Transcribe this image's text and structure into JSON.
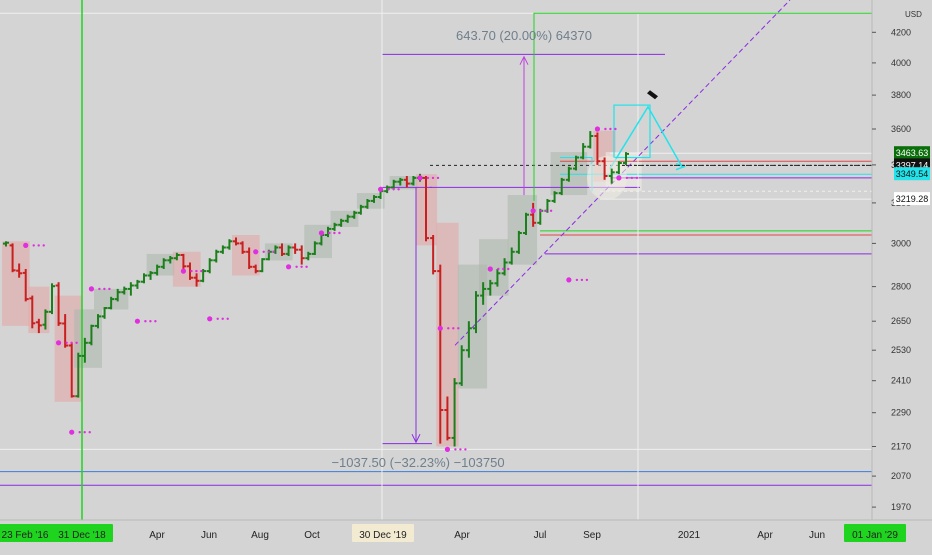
{
  "chart_data": {
    "type": "ohlc",
    "currency": "USD",
    "y_scale": "log",
    "ylim": [
      1930,
      4380
    ],
    "price_ticks": [
      4200,
      4000,
      3800,
      3600,
      3400,
      3200,
      3000,
      2800,
      2650,
      2530,
      2410,
      2290,
      2170,
      2070,
      1970
    ],
    "x_labels": [
      {
        "text": "23 Feb '16",
        "highlight": true,
        "color": "#1fd41f"
      },
      {
        "text": "31 Dec '18",
        "highlight": true,
        "color": "#1fd41f"
      },
      {
        "text": "Apr",
        "highlight": false
      },
      {
        "text": "Jun",
        "highlight": false
      },
      {
        "text": "Aug",
        "highlight": false
      },
      {
        "text": "Oct",
        "highlight": false
      },
      {
        "text": "30 Dec '19",
        "highlight": true,
        "color": "#f3ead2"
      },
      {
        "text": "Apr",
        "highlight": false
      },
      {
        "text": "Jul",
        "highlight": false
      },
      {
        "text": "Sep",
        "highlight": false
      },
      {
        "text": "2021",
        "highlight": false
      },
      {
        "text": "Apr",
        "highlight": false
      },
      {
        "text": "Jun",
        "highlight": false
      },
      {
        "text": "01 Jan '29",
        "highlight": true,
        "color": "#1fd41f"
      }
    ],
    "price_labels": [
      {
        "value": 3463.63,
        "text": "3463.63",
        "bg": "#0a6e0a",
        "fg": "#ffffff"
      },
      {
        "value": 3397.14,
        "text": "3397.14",
        "bg": "#111111",
        "fg": "#ffffff"
      },
      {
        "value": 3349.54,
        "text": "3349.54",
        "bg": "#22e3ea",
        "fg": "#111111"
      },
      {
        "value": 3219.28,
        "text": "3219.28",
        "bg": "#ffffff",
        "fg": "#111111"
      }
    ],
    "annotations": [
      {
        "text": "643.70 (20.00%) 64370",
        "kind": "measure-up"
      },
      {
        "text": "−1037.50 (−32.23%) −103750",
        "kind": "measure-down"
      }
    ],
    "bars": [
      [
        2999,
        3010,
        2985,
        3003
      ],
      [
        2990,
        3000,
        2865,
        2874
      ],
      [
        2872,
        2905,
        2840,
        2860
      ],
      [
        2862,
        2880,
        2735,
        2745
      ],
      [
        2748,
        2760,
        2620,
        2641
      ],
      [
        2645,
        2660,
        2600,
        2632
      ],
      [
        2635,
        2700,
        2615,
        2690
      ],
      [
        2690,
        2815,
        2680,
        2802
      ],
      [
        2805,
        2820,
        2630,
        2641
      ],
      [
        2640,
        2680,
        2540,
        2549
      ],
      [
        2549,
        2560,
        2346,
        2351
      ],
      [
        2351,
        2520,
        2346,
        2507
      ],
      [
        2507,
        2580,
        2480,
        2560
      ],
      [
        2560,
        2635,
        2550,
        2630
      ],
      [
        2630,
        2680,
        2620,
        2670
      ],
      [
        2670,
        2710,
        2660,
        2706
      ],
      [
        2706,
        2755,
        2700,
        2745
      ],
      [
        2745,
        2790,
        2735,
        2775
      ],
      [
        2775,
        2800,
        2765,
        2790
      ],
      [
        2790,
        2820,
        2760,
        2805
      ],
      [
        2805,
        2830,
        2790,
        2822
      ],
      [
        2822,
        2860,
        2815,
        2850
      ],
      [
        2850,
        2870,
        2830,
        2862
      ],
      [
        2862,
        2900,
        2850,
        2890
      ],
      [
        2890,
        2930,
        2880,
        2920
      ],
      [
        2920,
        2940,
        2905,
        2930
      ],
      [
        2930,
        2955,
        2920,
        2945
      ],
      [
        2945,
        2950,
        2880,
        2892
      ],
      [
        2892,
        2910,
        2830,
        2840
      ],
      [
        2840,
        2860,
        2800,
        2826
      ],
      [
        2826,
        2880,
        2820,
        2870
      ],
      [
        2870,
        2930,
        2860,
        2920
      ],
      [
        2920,
        2970,
        2910,
        2960
      ],
      [
        2960,
        2990,
        2950,
        2980
      ],
      [
        2980,
        3020,
        2970,
        3010
      ],
      [
        3010,
        3028,
        2990,
        3000
      ],
      [
        3000,
        3010,
        2950,
        2960
      ],
      [
        2960,
        2980,
        2880,
        2890
      ],
      [
        2890,
        2900,
        2860,
        2870
      ],
      [
        2870,
        2930,
        2865,
        2925
      ],
      [
        2925,
        2970,
        2920,
        2960
      ],
      [
        2960,
        2990,
        2950,
        2980
      ],
      [
        2980,
        3000,
        2940,
        2950
      ],
      [
        2950,
        2990,
        2940,
        2980
      ],
      [
        2980,
        3000,
        2950,
        2970
      ],
      [
        2970,
        2990,
        2900,
        2930
      ],
      [
        2930,
        2960,
        2920,
        2950
      ],
      [
        2950,
        3010,
        2945,
        3000
      ],
      [
        3000,
        3050,
        2990,
        3040
      ],
      [
        3040,
        3080,
        3030,
        3070
      ],
      [
        3070,
        3100,
        3060,
        3090
      ],
      [
        3090,
        3120,
        3080,
        3110
      ],
      [
        3110,
        3140,
        3100,
        3130
      ],
      [
        3130,
        3160,
        3120,
        3150
      ],
      [
        3150,
        3190,
        3140,
        3180
      ],
      [
        3180,
        3220,
        3170,
        3210
      ],
      [
        3210,
        3240,
        3200,
        3230
      ],
      [
        3230,
        3270,
        3220,
        3260
      ],
      [
        3260,
        3290,
        3250,
        3280
      ],
      [
        3280,
        3320,
        3270,
        3310
      ],
      [
        3310,
        3330,
        3290,
        3320
      ],
      [
        3320,
        3340,
        3280,
        3300
      ],
      [
        3300,
        3340,
        3290,
        3330
      ],
      [
        3330,
        3352,
        3310,
        3330
      ],
      [
        3330,
        3340,
        3010,
        3025
      ],
      [
        3025,
        3040,
        2855,
        2870
      ],
      [
        2870,
        2900,
        2180,
        2300
      ],
      [
        2300,
        2350,
        2191,
        2200
      ],
      [
        2200,
        2420,
        2170,
        2400
      ],
      [
        2400,
        2550,
        2390,
        2530
      ],
      [
        2530,
        2650,
        2500,
        2620
      ],
      [
        2620,
        2780,
        2600,
        2760
      ],
      [
        2760,
        2820,
        2720,
        2790
      ],
      [
        2790,
        2830,
        2760,
        2815
      ],
      [
        2815,
        2880,
        2800,
        2860
      ],
      [
        2860,
        2930,
        2850,
        2910
      ],
      [
        2910,
        2980,
        2900,
        2960
      ],
      [
        2960,
        3060,
        2950,
        3050
      ],
      [
        3050,
        3150,
        3040,
        3140
      ],
      [
        3140,
        3200,
        3080,
        3100
      ],
      [
        3100,
        3170,
        3090,
        3160
      ],
      [
        3160,
        3220,
        3150,
        3210
      ],
      [
        3210,
        3260,
        3200,
        3250
      ],
      [
        3250,
        3330,
        3240,
        3320
      ],
      [
        3320,
        3390,
        3310,
        3380
      ],
      [
        3380,
        3450,
        3370,
        3440
      ],
      [
        3440,
        3520,
        3430,
        3500
      ],
      [
        3500,
        3588,
        3490,
        3560
      ],
      [
        3560,
        3580,
        3400,
        3420
      ],
      [
        3420,
        3440,
        3320,
        3340
      ],
      [
        3340,
        3380,
        3300,
        3360
      ],
      [
        3360,
        3420,
        3350,
        3410
      ],
      [
        3410,
        3470,
        3400,
        3460
      ]
    ]
  }
}
